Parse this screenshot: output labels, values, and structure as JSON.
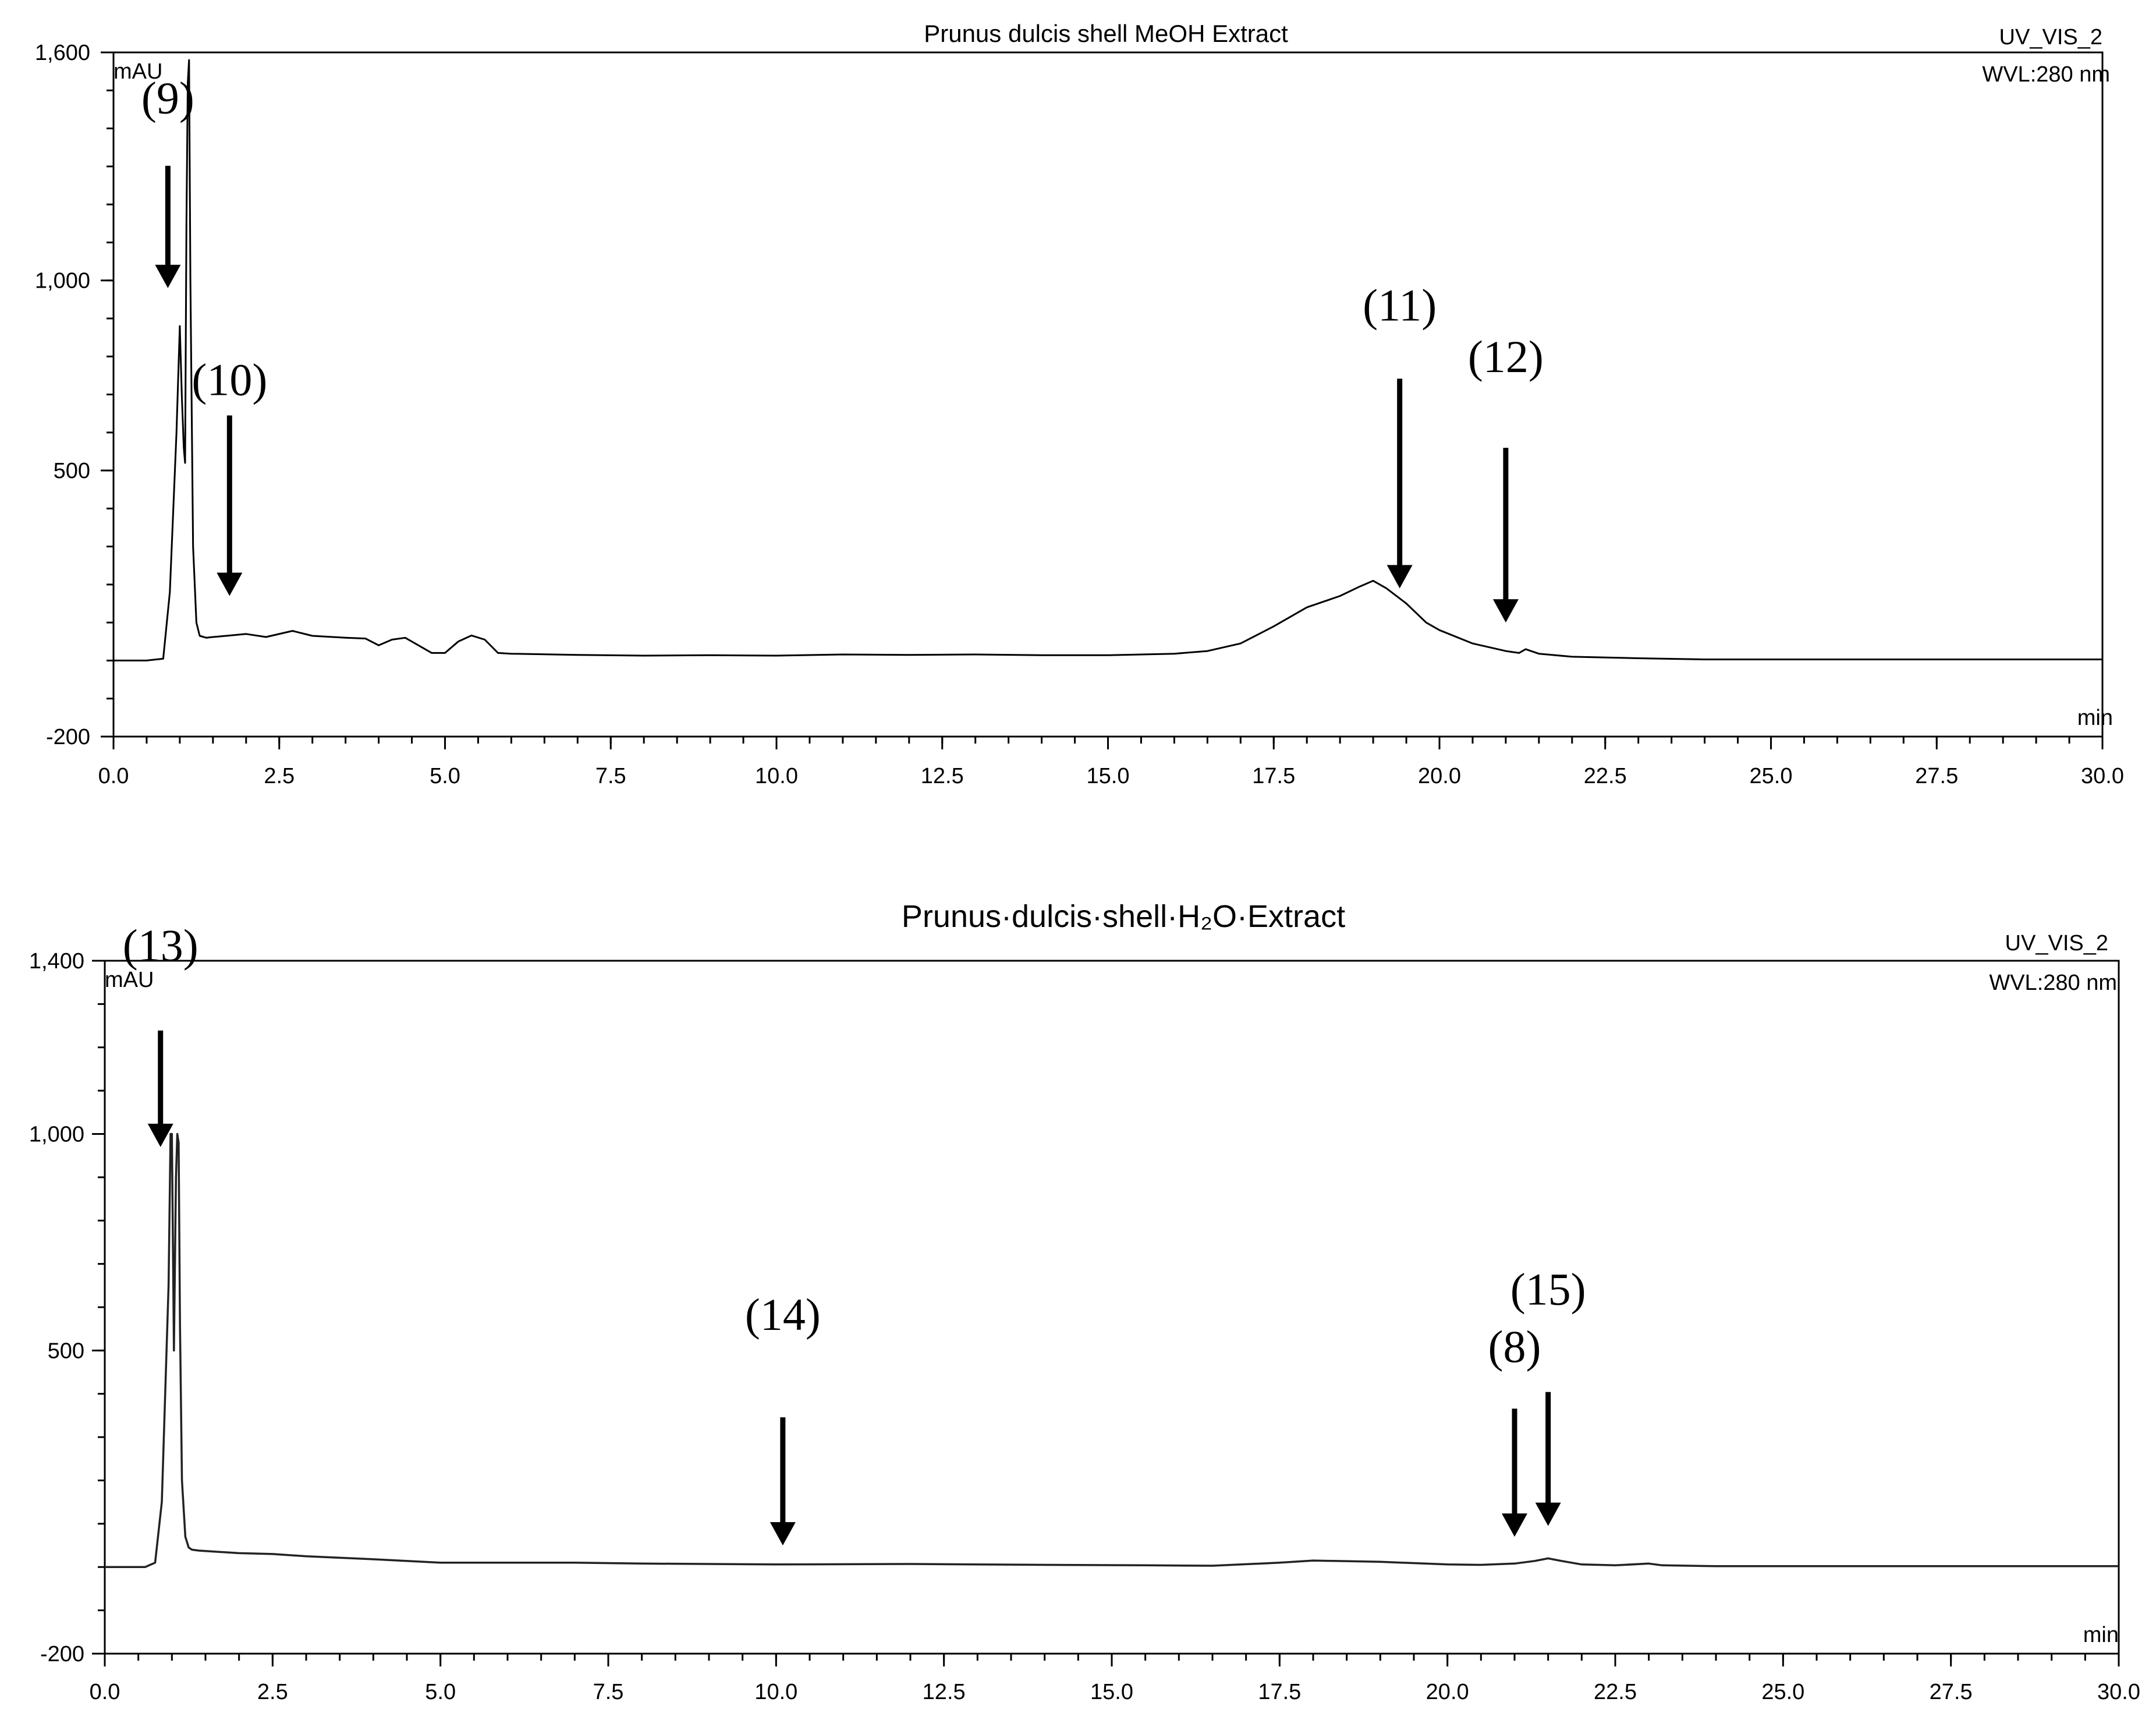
{
  "chart_data": [
    {
      "type": "line",
      "title": "Prunus dulcis shell MeOH Extract",
      "channel": "UV_VIS_2",
      "wavelength": "WVL:280 nm",
      "ylabel": "mAU",
      "xlabel": "min",
      "xlim": [
        0,
        30
      ],
      "ylim": [
        -200,
        1600
      ],
      "yticks": [
        {
          "value": 1600,
          "label": "1,600"
        },
        {
          "value": 1000,
          "label": "1,000"
        },
        {
          "value": 500,
          "label": "500"
        },
        {
          "value": -200,
          "label": "-200"
        }
      ],
      "xticks": [
        "0.0",
        "2.5",
        "5.0",
        "7.5",
        "10.0",
        "12.5",
        "15.0",
        "17.5",
        "20.0",
        "22.5",
        "25.0",
        "27.5",
        "30.0"
      ],
      "x": [
        0.0,
        0.5,
        0.75,
        0.85,
        0.95,
        1.0,
        1.03,
        1.06,
        1.08,
        1.1,
        1.12,
        1.14,
        1.16,
        1.2,
        1.25,
        1.3,
        1.4,
        1.5,
        1.7,
        2.0,
        2.3,
        2.7,
        3.0,
        3.5,
        3.8,
        4.0,
        4.2,
        4.4,
        4.6,
        4.8,
        5.0,
        5.2,
        5.4,
        5.6,
        5.8,
        6.0,
        7.0,
        8.0,
        9.0,
        10.0,
        11.0,
        12.0,
        13.0,
        14.0,
        15.0,
        16.0,
        16.5,
        17.0,
        17.5,
        18.0,
        18.5,
        18.8,
        19.0,
        19.2,
        19.5,
        19.8,
        20.0,
        20.5,
        21.0,
        21.2,
        21.3,
        21.5,
        22.0,
        23.0,
        24.0,
        30.0
      ],
      "y": [
        0,
        0,
        5,
        180,
        600,
        880,
        700,
        560,
        520,
        1150,
        1520,
        1580,
        1000,
        300,
        100,
        65,
        60,
        62,
        65,
        70,
        62,
        78,
        65,
        60,
        58,
        40,
        55,
        60,
        40,
        20,
        20,
        50,
        66,
        55,
        20,
        18,
        15,
        13,
        14,
        13,
        16,
        15,
        16,
        14,
        14,
        18,
        25,
        45,
        90,
        140,
        170,
        195,
        210,
        190,
        150,
        100,
        80,
        45,
        25,
        20,
        30,
        18,
        10,
        6,
        3,
        3
      ],
      "annotations": [
        {
          "label": "(9)",
          "x": 0.82,
          "y": 980
        },
        {
          "label": "(10)",
          "x": 1.75,
          "y": 170
        },
        {
          "label": "(11)",
          "x": 19.4,
          "y": 190
        },
        {
          "label": "(12)",
          "x": 21.0,
          "y": 100
        }
      ]
    },
    {
      "type": "line",
      "title": "Prunus·dulcis·shell·H₂O·Extract",
      "channel": "UV_VIS_2",
      "wavelength": "WVL:280 nm",
      "ylabel": "mAU",
      "xlabel": "min",
      "xlim": [
        0,
        30
      ],
      "ylim": [
        -200,
        1400
      ],
      "yticks": [
        {
          "value": 1400,
          "label": "1,400"
        },
        {
          "value": 1000,
          "label": "1,000"
        },
        {
          "value": 500,
          "label": "500"
        },
        {
          "value": -200,
          "label": "-200"
        }
      ],
      "xticks": [
        "0.0",
        "2.5",
        "5.0",
        "7.5",
        "10.0",
        "12.5",
        "15.0",
        "17.5",
        "20.0",
        "22.5",
        "25.0",
        "27.5",
        "30.0"
      ],
      "x": [
        0.0,
        0.6,
        0.75,
        0.85,
        0.95,
        0.98,
        1.0,
        1.03,
        1.06,
        1.08,
        1.1,
        1.12,
        1.15,
        1.2,
        1.25,
        1.3,
        1.4,
        1.6,
        2.0,
        2.5,
        3.0,
        4.0,
        5.0,
        6.0,
        7.0,
        8.0,
        10.0,
        12.0,
        14.0,
        15.5,
        16.5,
        17.5,
        18.0,
        19.0,
        20.0,
        20.5,
        21.0,
        21.3,
        21.5,
        21.7,
        22.0,
        22.5,
        23.0,
        23.2,
        24.0,
        30.0
      ],
      "y": [
        0,
        0,
        10,
        150,
        650,
        1000,
        1000,
        500,
        900,
        1000,
        980,
        560,
        200,
        70,
        45,
        40,
        38,
        36,
        32,
        30,
        25,
        18,
        10,
        10,
        10,
        8,
        6,
        7,
        5,
        4,
        3,
        10,
        15,
        12,
        6,
        5,
        8,
        14,
        20,
        14,
        6,
        4,
        8,
        4,
        2,
        2
      ],
      "annotations": [
        {
          "label": "(13)",
          "x": 0.83,
          "y": 970
        },
        {
          "label": "(14)",
          "x": 10.1,
          "y": 50
        },
        {
          "label": "(8)",
          "x": 21.0,
          "y": 70
        },
        {
          "label": "(15)",
          "x": 21.5,
          "y": 95
        }
      ]
    }
  ]
}
